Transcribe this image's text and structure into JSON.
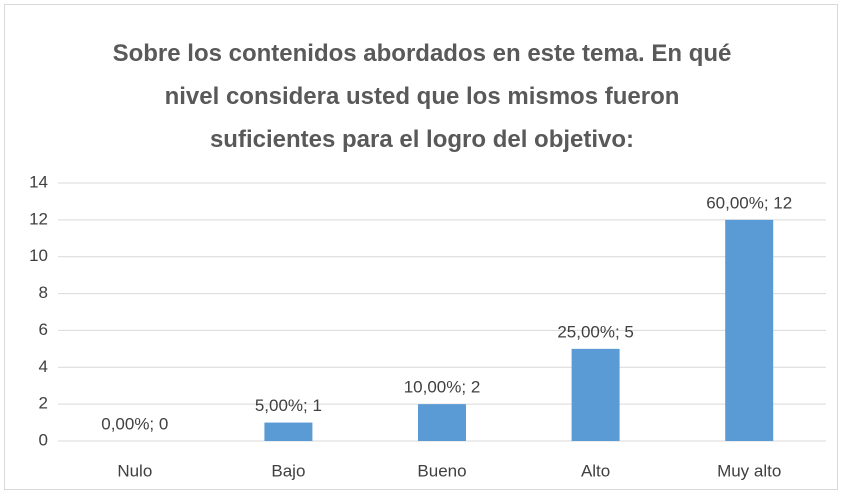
{
  "chart_data": {
    "type": "bar",
    "title": "Sobre los contenidos abordados en este tema. En qué nivel considera usted que los mismos fueron suficientes para el logro del objetivo:",
    "categories": [
      "Nulo",
      "Bajo",
      "Bueno",
      "Alto",
      "Muy alto"
    ],
    "values": [
      0,
      1,
      2,
      5,
      12
    ],
    "value_labels": [
      "0,00%; 0",
      "5,00%; 1",
      "10,00%; 2",
      "25,00%; 5",
      "60,00%; 12"
    ],
    "color": "#5b9bd5",
    "ylim": [
      0,
      14
    ],
    "yticks": [
      0,
      2,
      4,
      6,
      8,
      10,
      12,
      14
    ],
    "grid": true
  }
}
